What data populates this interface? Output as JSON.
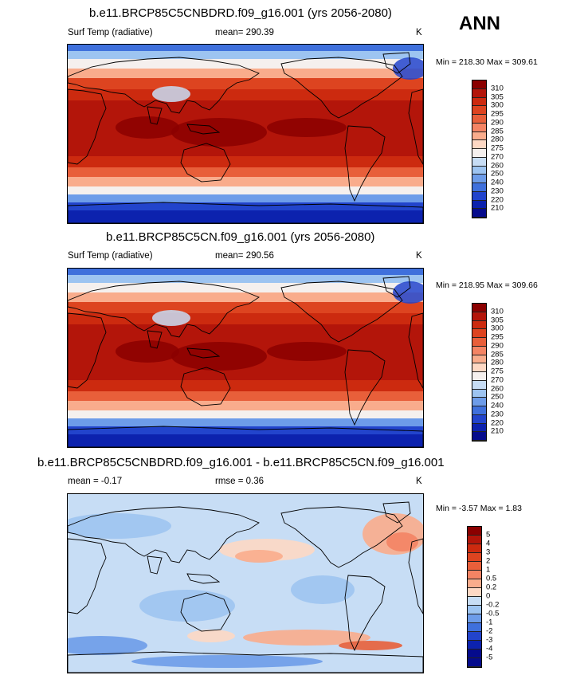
{
  "season": "ANN",
  "panels": [
    {
      "title": "b.e11.BRCP85C5CNBDRD.f09_g16.001 (yrs 2056-2080)",
      "variable": "Surf Temp (radiative)",
      "mean": "mean= 290.39",
      "units": "K",
      "minmax": "Min = 218.30 Max = 309.61"
    },
    {
      "title": "b.e11.BRCP85C5CN.f09_g16.001 (yrs 2056-2080)",
      "variable": "Surf Temp (radiative)",
      "mean": "mean= 290.56",
      "units": "K",
      "minmax": "Min = 218.95 Max = 309.66"
    },
    {
      "title": "b.e11.BRCP85C5CNBDRD.f09_g16.001 - b.e11.BRCP85C5CN.f09_g16.001",
      "mean": "mean =  -0.17",
      "rmse": "rmse =   0.36",
      "units": "K",
      "minmax": "Min =  -3.57 Max =   1.83"
    }
  ],
  "temp_colorbar": {
    "labels": [
      "310",
      "305",
      "300",
      "295",
      "290",
      "285",
      "280",
      "275",
      "270",
      "260",
      "250",
      "240",
      "230",
      "220",
      "210"
    ],
    "colors": [
      "#8b0000",
      "#b3150a",
      "#cc2a0f",
      "#dd4420",
      "#e85f3a",
      "#f48464",
      "#f9ac8c",
      "#fdd8c4",
      "#f5f0ee",
      "#c7ddf5",
      "#9dc4f1",
      "#6d9ce9",
      "#3f70dc",
      "#2244cc",
      "#0c22ae",
      "#050b8c"
    ]
  },
  "diff_colorbar": {
    "labels": [
      "5",
      "4",
      "3",
      "2",
      "1",
      "0.5",
      "0.2",
      "0",
      "-0.2",
      "-0.5",
      "-1",
      "-2",
      "-3",
      "-4",
      "-5"
    ],
    "colors": [
      "#8b0000",
      "#b3150a",
      "#cc2a0f",
      "#dd4420",
      "#e85f3a",
      "#f48464",
      "#f9ac8c",
      "#fdd8c4",
      "#c7ddf5",
      "#9dc4f1",
      "#6d9ce9",
      "#3f70dc",
      "#2244cc",
      "#0c22ae",
      "#050b8c",
      "#050b8c"
    ]
  }
}
